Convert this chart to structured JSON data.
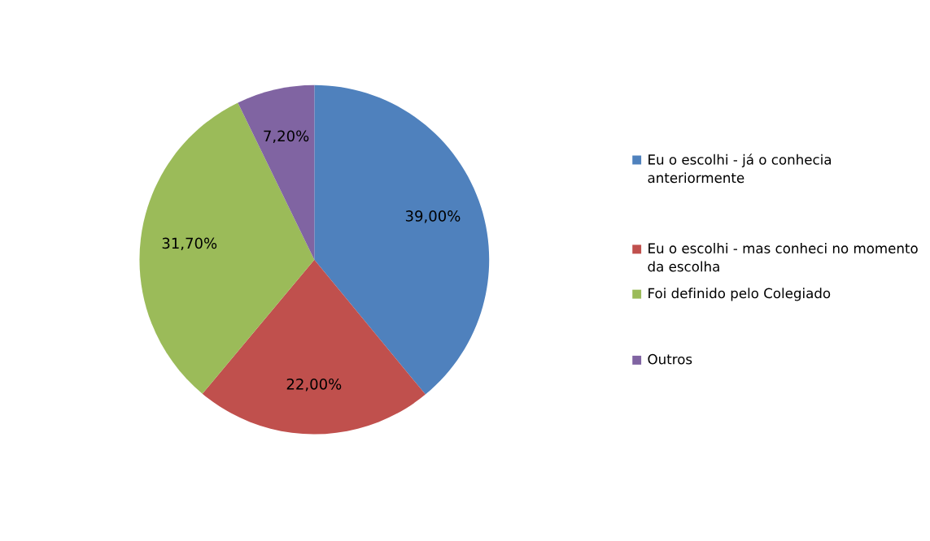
{
  "chart_data": {
    "type": "pie",
    "categories": [
      "Eu o escolhi - já o conhecia anteriormente",
      "Eu o escolhi - mas conheci no momento da escolha",
      "Foi definido pelo Colegiado",
      "Outros"
    ],
    "values": [
      39.0,
      22.0,
      31.7,
      7.2
    ],
    "colors": [
      "#4f81bd",
      "#c0504d",
      "#9bbb59",
      "#8064a2"
    ],
    "value_labels": [
      "39,00%",
      "22,00%",
      "31,70%",
      "7,20%"
    ],
    "legend": "right"
  }
}
